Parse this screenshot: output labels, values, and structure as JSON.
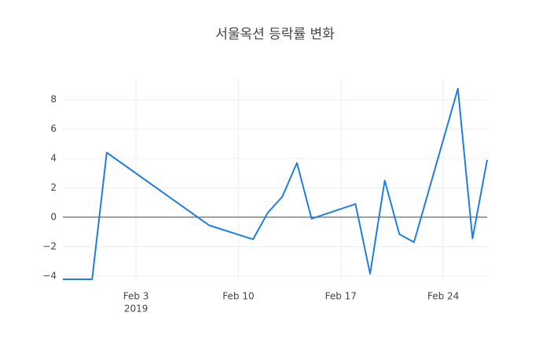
{
  "chart_data": {
    "type": "line",
    "title": "서울옥션 등락률 변화",
    "x": [
      "2019-01-29",
      "2019-01-31",
      "2019-02-01",
      "2019-02-08",
      "2019-02-11",
      "2019-02-12",
      "2019-02-13",
      "2019-02-14",
      "2019-02-15",
      "2019-02-18",
      "2019-02-19",
      "2019-02-20",
      "2019-02-21",
      "2019-02-22",
      "2019-02-25",
      "2019-02-26",
      "2019-02-27"
    ],
    "series": [
      {
        "color": "#1f7fe0",
        "values": [
          -4.22,
          -4.22,
          4.4,
          -0.55,
          -1.5,
          0.3,
          1.4,
          3.7,
          -0.1,
          0.9,
          -3.85,
          2.5,
          -1.15,
          -1.7,
          8.75,
          -1.45,
          3.9
        ]
      }
    ],
    "xlim": [
      "2019-01-29",
      "2019-02-27"
    ],
    "xticks": [
      {
        "value": "2019-02-03",
        "label": "Feb 3",
        "sublabel": "2019"
      },
      {
        "value": "2019-02-10",
        "label": "Feb 10"
      },
      {
        "value": "2019-02-17",
        "label": "Feb 17"
      },
      {
        "value": "2019-02-24",
        "label": "Feb 24"
      }
    ],
    "ylim": [
      -4.22,
      8.75
    ],
    "yticks": [
      {
        "value": -4,
        "label": "−4"
      },
      {
        "value": -2,
        "label": "−2"
      },
      0,
      2,
      4,
      6,
      8
    ],
    "grid": true,
    "zeroline": true
  }
}
